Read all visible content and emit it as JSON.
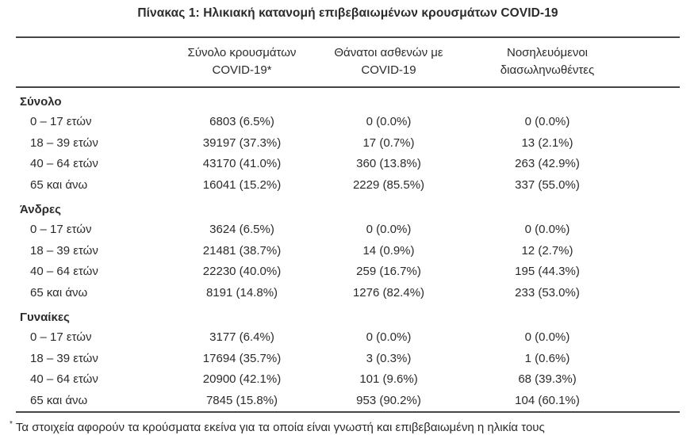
{
  "title": "Πίνακας 1: Ηλικιακή κατανομή επιβεβαιωμένων κρουσμάτων COVID-19",
  "colors": {
    "text": "#2b2b2b",
    "rule": "#454545",
    "background": "#ffffff"
  },
  "table": {
    "col_headers": [
      {
        "line1": "Σύνολο κρουσμάτων",
        "line2": "COVID-19*"
      },
      {
        "line1": "Θάνατοι ασθενών με",
        "line2": "COVID-19"
      },
      {
        "line1": "Νοσηλευόμενοι",
        "line2": "διασωληνωθέντες"
      }
    ],
    "sections": [
      {
        "label": "Σύνολο",
        "rows": [
          {
            "age": "0 – 17 ετών",
            "cases": "6803 (6.5%)",
            "deaths": "0 (0.0%)",
            "intubated": "0 (0.0%)"
          },
          {
            "age": "18 – 39 ετών",
            "cases": "39197 (37.3%)",
            "deaths": "17 (0.7%)",
            "intubated": "13 (2.1%)"
          },
          {
            "age": "40 – 64 ετών",
            "cases": "43170 (41.0%)",
            "deaths": "360 (13.8%)",
            "intubated": "263 (42.9%)"
          },
          {
            "age": "65 και άνω",
            "cases": "16041 (15.2%)",
            "deaths": "2229 (85.5%)",
            "intubated": "337 (55.0%)"
          }
        ]
      },
      {
        "label": "Άνδρες",
        "rows": [
          {
            "age": "0 – 17 ετών",
            "cases": "3624 (6.5%)",
            "deaths": "0 (0.0%)",
            "intubated": "0 (0.0%)"
          },
          {
            "age": "18 – 39 ετών",
            "cases": "21481 (38.7%)",
            "deaths": "14 (0.9%)",
            "intubated": "12 (2.7%)"
          },
          {
            "age": "40 – 64 ετών",
            "cases": "22230 (40.0%)",
            "deaths": "259 (16.7%)",
            "intubated": "195 (44.3%)"
          },
          {
            "age": "65 και άνω",
            "cases": "8191 (14.8%)",
            "deaths": "1276 (82.4%)",
            "intubated": "233 (53.0%)"
          }
        ]
      },
      {
        "label": "Γυναίκες",
        "rows": [
          {
            "age": "0 – 17 ετών",
            "cases": "3177 (6.4%)",
            "deaths": "0 (0.0%)",
            "intubated": "0 (0.0%)"
          },
          {
            "age": "18 – 39 ετών",
            "cases": "17694 (35.7%)",
            "deaths": "3 (0.3%)",
            "intubated": "1 (0.6%)"
          },
          {
            "age": "40 – 64 ετών",
            "cases": "20900 (42.1%)",
            "deaths": "101 (9.6%)",
            "intubated": "68 (39.3%)"
          },
          {
            "age": "65 και άνω",
            "cases": "7845 (15.8%)",
            "deaths": "953 (90.2%)",
            "intubated": "104 (60.1%)"
          }
        ]
      }
    ]
  },
  "footnote": {
    "marker": "*",
    "text": "Τα στοιχεία αφορούν τα κρούσματα εκείνα για τα οποία είναι γνωστή και επιβεβαιωμένη η ηλικία τους"
  }
}
